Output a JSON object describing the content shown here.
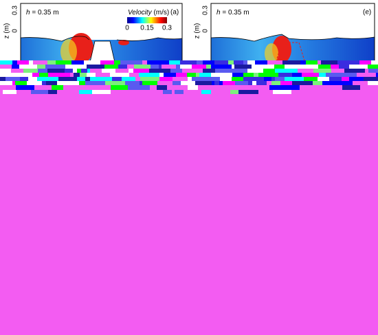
{
  "panels": [
    {
      "label": "(a)",
      "depth_symbol": "h",
      "depth_value": "= 0.35 m",
      "y_axis_label": "z (m)",
      "y_ticks": [
        "0.3",
        "0"
      ],
      "colorbar": {
        "title_italic": "Velocity",
        "title_unit": "(m/s)",
        "ticks": [
          "0",
          "0.15",
          "0.3"
        ]
      }
    },
    {
      "label": "(e)",
      "depth_symbol": "h",
      "depth_value": "= 0.35 m",
      "y_axis_label": "z (m)",
      "y_ticks": [
        "0.3",
        "0"
      ]
    }
  ]
}
